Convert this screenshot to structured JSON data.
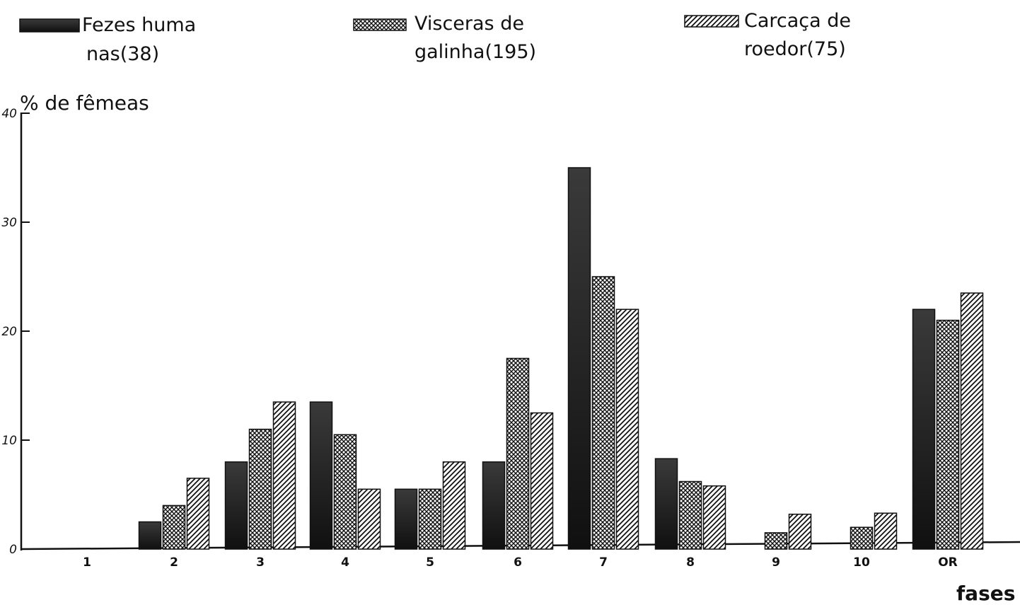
{
  "chart_data": {
    "type": "bar",
    "ylabel": "% de fêmeas",
    "xlabel": "fases",
    "ylim": [
      0,
      40
    ],
    "y_ticks": [
      0,
      10,
      20,
      30,
      40
    ],
    "y_tick_labels": [
      "0",
      "10",
      "20",
      "30",
      "40"
    ],
    "grid": false,
    "legend_position": "top",
    "categories": [
      "1",
      "2",
      "3",
      "4",
      "5",
      "6",
      "7",
      "8",
      "9",
      "10",
      "OR"
    ],
    "series": [
      {
        "name": "Fezes huma nas(38)",
        "legend_lines": [
          "Fezes huma",
          "nas(38)"
        ],
        "pattern": "solid-dark",
        "color": "#1a1a1a",
        "values": [
          0,
          2.5,
          8,
          13.5,
          5.5,
          8,
          35,
          8.3,
          0,
          0,
          22
        ]
      },
      {
        "name": "Visceras de galinha(195)",
        "legend_lines": [
          "Visceras de",
          "galinha(195)"
        ],
        "pattern": "crosshatch",
        "color": "#222222",
        "values": [
          0,
          4,
          11,
          10.5,
          5.5,
          17.5,
          25,
          6.2,
          1.5,
          2,
          21
        ]
      },
      {
        "name": "Carcaça de roedor(75)",
        "legend_lines": [
          "Carcaça de",
          "roedor(75)"
        ],
        "pattern": "diagonal",
        "color": "#222222",
        "values": [
          0,
          6.5,
          13.5,
          5.5,
          8,
          12.5,
          22,
          5.8,
          3.2,
          3.3,
          23.5
        ]
      }
    ]
  }
}
